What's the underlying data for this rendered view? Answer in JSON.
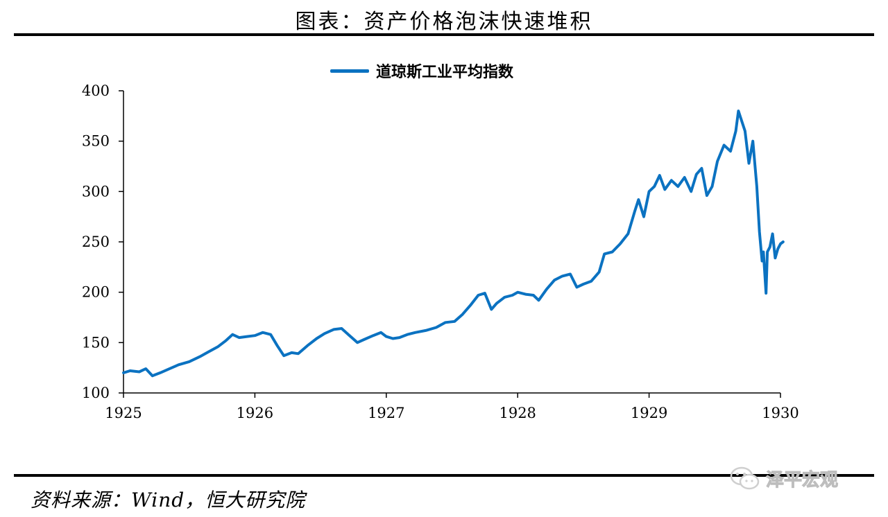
{
  "header": {
    "title": "图表：资产价格泡沫快速堆积"
  },
  "footer": {
    "source": "资料来源：Wind，恒大研究院",
    "watermark": "泽平宏观",
    "watermark_icon": "wechat-icon"
  },
  "colors": {
    "series": "#0b72c1",
    "rule": "#000000",
    "axis": "#000000",
    "watermark": "#d0d0d0"
  },
  "chart_data": {
    "type": "line",
    "title": "",
    "xlabel": "",
    "ylabel": "",
    "xlim": [
      1925,
      1930
    ],
    "ylim": [
      100,
      400
    ],
    "grid": false,
    "legend_position": "top-center",
    "x_ticks": [
      "1925",
      "1926",
      "1927",
      "1928",
      "1929",
      "1930"
    ],
    "y_ticks": [
      "100",
      "150",
      "200",
      "250",
      "300",
      "350",
      "400"
    ],
    "series": [
      {
        "name": "道琼斯工业平均指数",
        "color": "#0b72c1",
        "points": [
          [
            1925.0,
            120
          ],
          [
            1925.05,
            122
          ],
          [
            1925.12,
            121
          ],
          [
            1925.17,
            124
          ],
          [
            1925.22,
            117
          ],
          [
            1925.28,
            120
          ],
          [
            1925.35,
            124
          ],
          [
            1925.42,
            128
          ],
          [
            1925.5,
            131
          ],
          [
            1925.58,
            136
          ],
          [
            1925.65,
            141
          ],
          [
            1925.72,
            146
          ],
          [
            1925.78,
            152
          ],
          [
            1925.83,
            158
          ],
          [
            1925.88,
            155
          ],
          [
            1925.94,
            156
          ],
          [
            1926.0,
            157
          ],
          [
            1926.06,
            160
          ],
          [
            1926.12,
            158
          ],
          [
            1926.17,
            147
          ],
          [
            1926.22,
            137
          ],
          [
            1926.28,
            140
          ],
          [
            1926.33,
            139
          ],
          [
            1926.4,
            147
          ],
          [
            1926.47,
            154
          ],
          [
            1926.53,
            159
          ],
          [
            1926.6,
            163
          ],
          [
            1926.66,
            164
          ],
          [
            1926.72,
            157
          ],
          [
            1926.78,
            150
          ],
          [
            1926.83,
            153
          ],
          [
            1926.9,
            157
          ],
          [
            1926.96,
            160
          ],
          [
            1927.0,
            156
          ],
          [
            1927.05,
            154
          ],
          [
            1927.1,
            155
          ],
          [
            1927.16,
            158
          ],
          [
            1927.22,
            160
          ],
          [
            1927.3,
            162
          ],
          [
            1927.38,
            165
          ],
          [
            1927.45,
            170
          ],
          [
            1927.52,
            171
          ],
          [
            1927.58,
            178
          ],
          [
            1927.64,
            187
          ],
          [
            1927.7,
            197
          ],
          [
            1927.75,
            199
          ],
          [
            1927.8,
            183
          ],
          [
            1927.84,
            189
          ],
          [
            1927.9,
            195
          ],
          [
            1927.96,
            197
          ],
          [
            1928.0,
            200
          ],
          [
            1928.06,
            198
          ],
          [
            1928.12,
            197
          ],
          [
            1928.16,
            192
          ],
          [
            1928.22,
            203
          ],
          [
            1928.28,
            212
          ],
          [
            1928.34,
            216
          ],
          [
            1928.4,
            218
          ],
          [
            1928.45,
            205
          ],
          [
            1928.5,
            208
          ],
          [
            1928.56,
            211
          ],
          [
            1928.62,
            220
          ],
          [
            1928.66,
            238
          ],
          [
            1928.72,
            240
          ],
          [
            1928.78,
            248
          ],
          [
            1928.84,
            258
          ],
          [
            1928.89,
            280
          ],
          [
            1928.92,
            292
          ],
          [
            1928.96,
            275
          ],
          [
            1929.0,
            300
          ],
          [
            1929.04,
            305
          ],
          [
            1929.08,
            316
          ],
          [
            1929.12,
            302
          ],
          [
            1929.17,
            311
          ],
          [
            1929.22,
            305
          ],
          [
            1929.27,
            314
          ],
          [
            1929.32,
            300
          ],
          [
            1929.36,
            317
          ],
          [
            1929.4,
            323
          ],
          [
            1929.44,
            296
          ],
          [
            1929.48,
            305
          ],
          [
            1929.52,
            330
          ],
          [
            1929.57,
            346
          ],
          [
            1929.62,
            340
          ],
          [
            1929.66,
            360
          ],
          [
            1929.68,
            380
          ],
          [
            1929.7,
            372
          ],
          [
            1929.73,
            360
          ],
          [
            1929.76,
            328
          ],
          [
            1929.79,
            350
          ],
          [
            1929.82,
            305
          ],
          [
            1929.84,
            260
          ],
          [
            1929.86,
            231
          ],
          [
            1929.87,
            240
          ],
          [
            1929.89,
            199
          ],
          [
            1929.9,
            240
          ],
          [
            1929.92,
            245
          ],
          [
            1929.94,
            258
          ],
          [
            1929.96,
            234
          ],
          [
            1929.98,
            243
          ],
          [
            1930.0,
            248
          ],
          [
            1930.02,
            250
          ]
        ]
      }
    ]
  }
}
